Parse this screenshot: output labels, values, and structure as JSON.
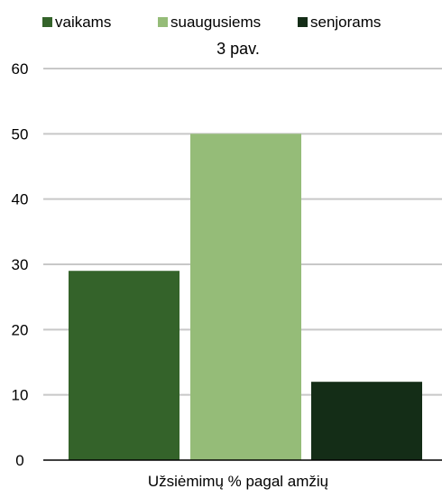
{
  "chart_data": {
    "type": "bar",
    "subtitle": "3 pav.",
    "xlabel": "Užsiėmimų % pagal amžių",
    "ylabel": "",
    "ylim": [
      0,
      60
    ],
    "yticks": [
      0,
      10,
      20,
      30,
      40,
      50,
      60
    ],
    "grid": true,
    "legend_position": "top",
    "categories": [
      "Užsiėmimų % pagal amžių"
    ],
    "series": [
      {
        "name": "vaikams",
        "color": "#34632a",
        "values": [
          29
        ]
      },
      {
        "name": "suaugusiems",
        "color": "#95bc78",
        "values": [
          50
        ]
      },
      {
        "name": "senjorams",
        "color": "#142d17",
        "values": [
          12
        ]
      }
    ]
  }
}
